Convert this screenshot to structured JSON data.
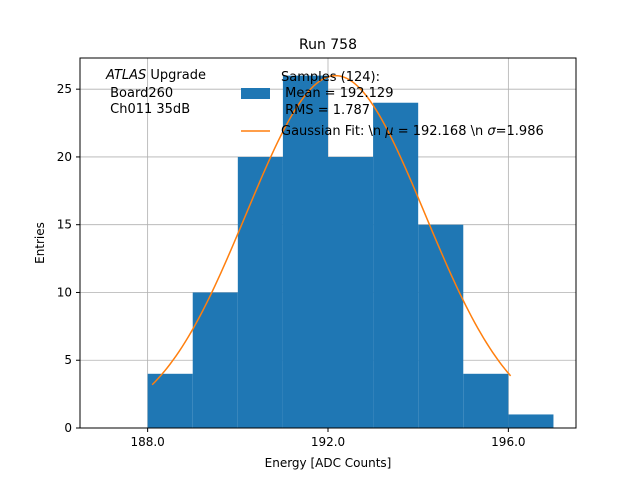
{
  "chart_data": {
    "type": "bar",
    "title": "Run 758",
    "xlabel": "Energy [ADC Counts]",
    "ylabel": "Entries",
    "xlim": [
      186.5,
      197.5
    ],
    "ylim": [
      0,
      27.3
    ],
    "x_ticks": [
      188.0,
      192.0,
      196.0
    ],
    "x_tick_labels": [
      "188.0",
      "192.0",
      "196.0"
    ],
    "y_ticks": [
      0,
      5,
      10,
      15,
      20,
      25
    ],
    "y_tick_labels": [
      "0",
      "5",
      "10",
      "15",
      "20",
      "25"
    ],
    "grid": true,
    "bins": [
      {
        "x0": 188,
        "x1": 189,
        "value": 4
      },
      {
        "x0": 189,
        "x1": 190,
        "value": 10
      },
      {
        "x0": 190,
        "x1": 191,
        "value": 20
      },
      {
        "x0": 191,
        "x1": 192,
        "value": 26
      },
      {
        "x0": 192,
        "x1": 193,
        "value": 20
      },
      {
        "x0": 193,
        "x1": 194,
        "value": 24
      },
      {
        "x0": 194,
        "x1": 195,
        "value": 15
      },
      {
        "x0": 195,
        "x1": 196,
        "value": 4
      },
      {
        "x0": 196,
        "x1": 197,
        "value": 1
      }
    ],
    "fit": {
      "mean": 192.168,
      "sigma": 1.986,
      "amplitude": 26.0,
      "x_range": [
        188.1,
        196.05
      ]
    },
    "colors": {
      "histogram": "#1f77b4",
      "fit": "#ff7f0e"
    },
    "annotation": {
      "line1_italic": "ATLAS",
      "line1_rest": " Upgrade",
      "line2": " Board260",
      "line3": " Ch011 35dB"
    },
    "legend": {
      "placement": "top-center",
      "hist_line1": "Samples (124):",
      "hist_line2": " Mean = 192.129",
      "hist_line3": " RMS = 1.787",
      "fit_label_prefix": "Gaussian Fit: \\n ",
      "fit_mu": "μ",
      "fit_mid": " = 192.168 \\n ",
      "fit_sigma": "σ",
      "fit_suffix": "=1.986"
    }
  }
}
